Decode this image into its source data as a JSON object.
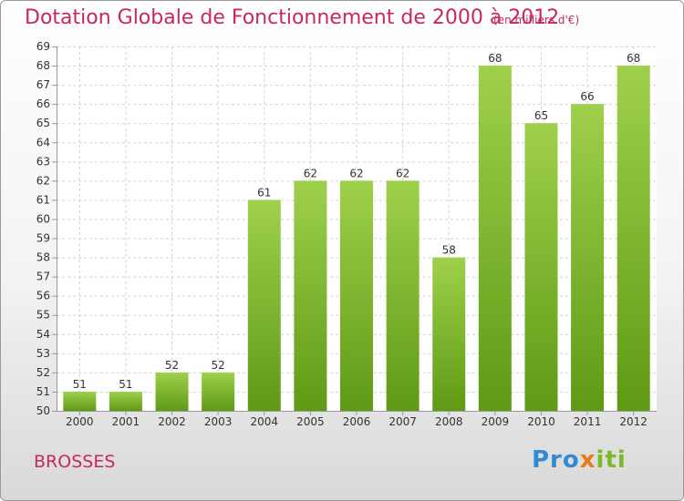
{
  "header": {
    "title": "Dotation Globale de Fonctionnement de 2000 à 2012",
    "unit": "(en milliers d'€)"
  },
  "footer": {
    "commune": "BROSSES",
    "logo": [
      "Pro",
      "x",
      "iti"
    ]
  },
  "colors": {
    "title": "#c8285a",
    "bar_top": "#9fd04c",
    "bar_bottom": "#5f9a14",
    "logo_blue": "#2f8bd6",
    "logo_orange": "#e87a1a",
    "logo_green": "#7cb829"
  },
  "chart_data": {
    "type": "bar",
    "title": "Dotation Globale de Fonctionnement de 2000 à 2012",
    "categories": [
      "2000",
      "2001",
      "2002",
      "2003",
      "2004",
      "2005",
      "2006",
      "2007",
      "2008",
      "2009",
      "2010",
      "2011",
      "2012"
    ],
    "values": [
      51,
      51,
      52,
      52,
      61,
      62,
      62,
      62,
      58,
      68,
      65,
      66,
      68
    ],
    "ylim": [
      50,
      69
    ],
    "yticks": [
      50,
      51,
      52,
      53,
      54,
      55,
      56,
      57,
      58,
      59,
      60,
      61,
      62,
      63,
      64,
      65,
      66,
      67,
      68,
      69
    ],
    "grid": true,
    "legend": "none"
  }
}
